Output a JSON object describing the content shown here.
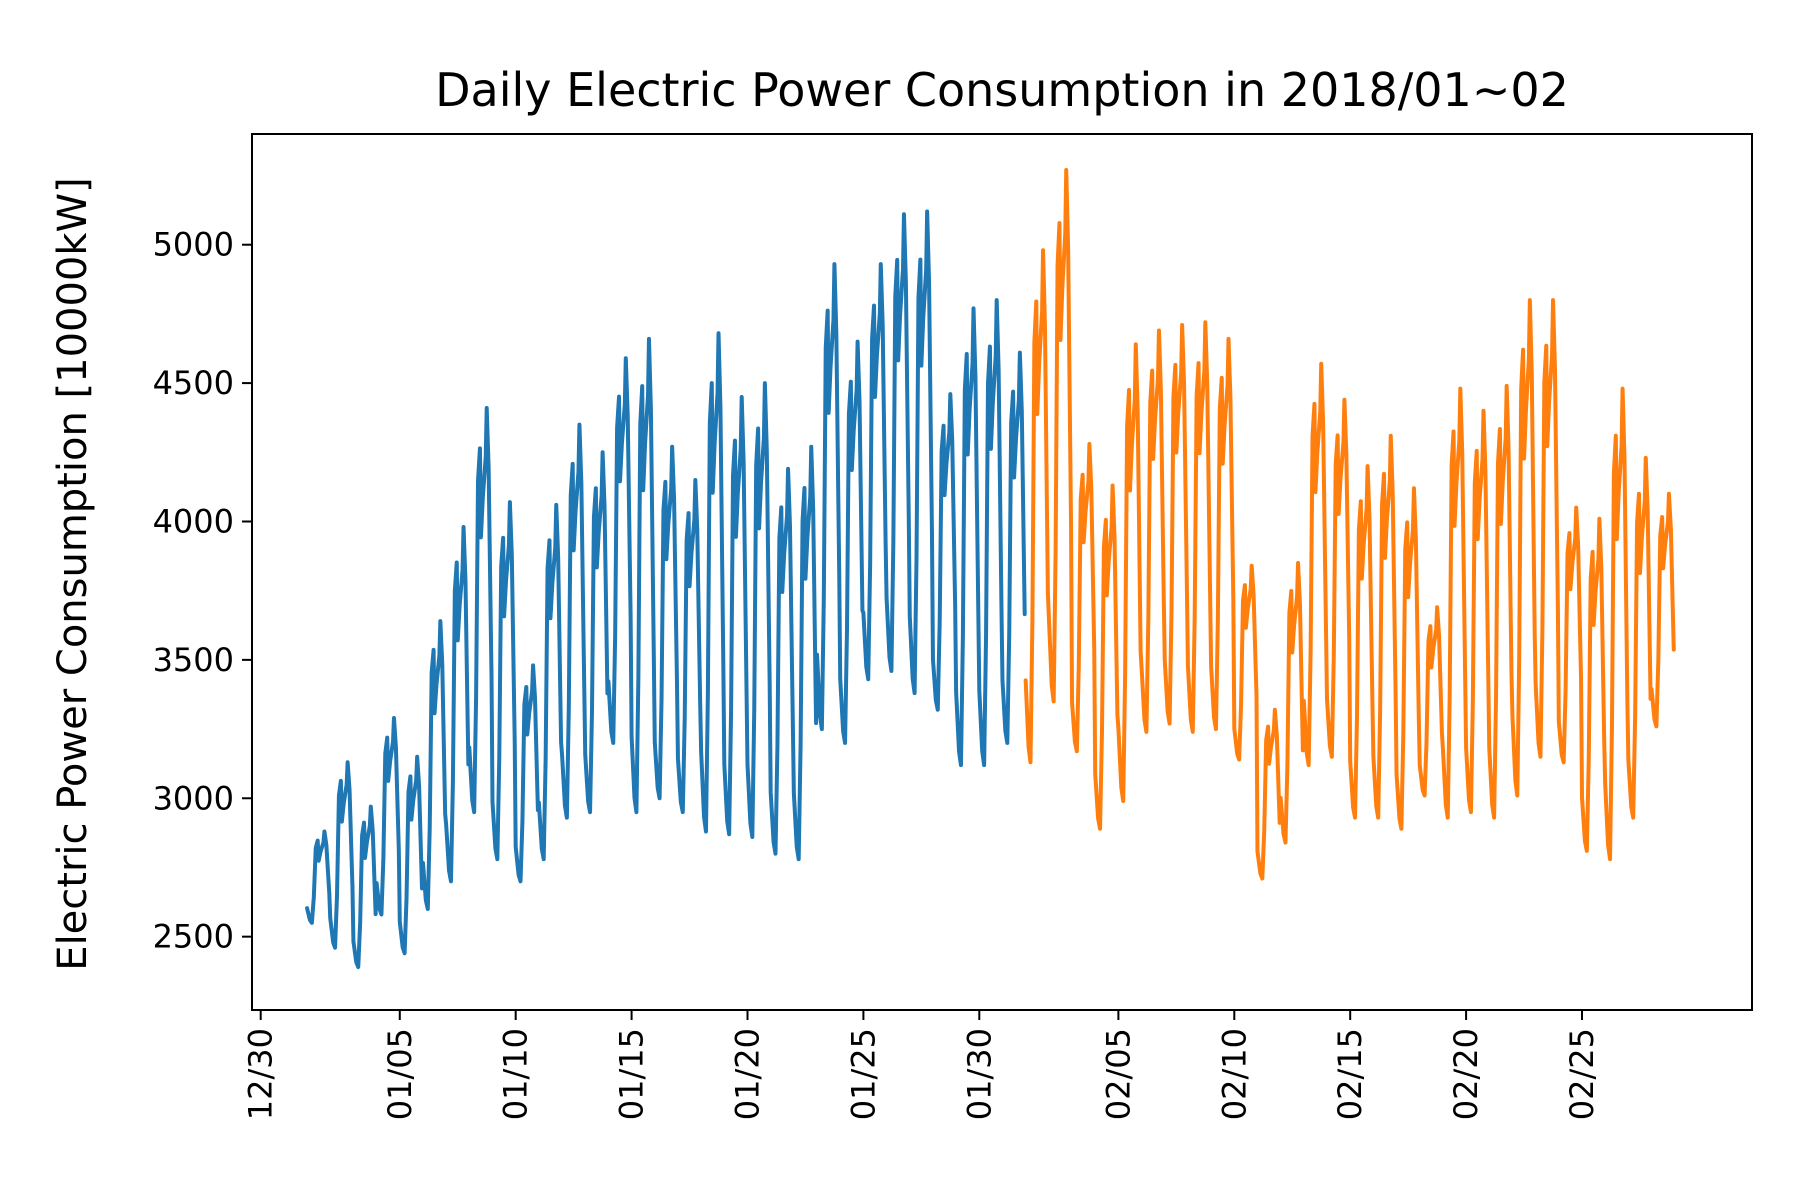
{
  "chart_data": {
    "type": "line",
    "title": "Daily Electric Power Consumption in 2018/01~02",
    "xlabel": "",
    "ylabel": "Electric Power Consumption [10000kW]",
    "x_unit": "hour",
    "ylim": [
      2235,
      5400
    ],
    "xlim": [
      "2017-12-29 15:00",
      "2018-03-04 08:00"
    ],
    "grid": false,
    "x_ticks": [
      "12/30",
      "01/05",
      "01/10",
      "01/15",
      "01/20",
      "01/25",
      "01/30",
      "02/05",
      "02/10",
      "02/15",
      "02/20",
      "02/25"
    ],
    "x_tick_dates": [
      "2017-12-30",
      "2018-01-05",
      "2018-01-10",
      "2018-01-15",
      "2018-01-20",
      "2018-01-25",
      "2018-01-30",
      "2018-02-05",
      "2018-02-10",
      "2018-02-15",
      "2018-02-20",
      "2018-02-25"
    ],
    "y_ticks": [
      2500,
      3000,
      3500,
      4000,
      4500,
      5000
    ],
    "y_tick_labels": [
      "2500",
      "3000",
      "3500",
      "4000",
      "4500",
      "5000"
    ],
    "series": [
      {
        "color": "#1f77b4",
        "start": "2018-01-01 00:00",
        "end": "2018-01-31 23:00",
        "daily_low": [
          2550,
          2460,
          2390,
          2580,
          2440,
          2600,
          2700,
          2950,
          2780,
          2700,
          2780,
          2930,
          2950,
          3200,
          2950,
          3000,
          2950,
          2880,
          2870,
          2860,
          2800,
          2780,
          3250,
          3200,
          3430,
          3460,
          3380,
          3320,
          3120,
          3120,
          3200
        ],
        "daily_high": [
          2880,
          3130,
          2970,
          3290,
          3150,
          3640,
          3980,
          4410,
          4070,
          3480,
          4060,
          4350,
          4250,
          4590,
          4660,
          4270,
          4150,
          4680,
          4450,
          4500,
          4190,
          4270,
          4930,
          4650,
          4930,
          5110,
          5120,
          4460,
          4770,
          4800,
          4610
        ]
      },
      {
        "color": "#ff7f0e",
        "start": "2018-02-01 00:00",
        "end": "2018-02-28 23:00",
        "daily_low": [
          3130,
          3350,
          3170,
          2890,
          2990,
          3240,
          3270,
          3240,
          3250,
          3140,
          2710,
          2840,
          3120,
          3150,
          2930,
          2930,
          2890,
          3010,
          2930,
          2950,
          2930,
          3010,
          3150,
          3130,
          2810,
          2780,
          2930,
          3260
        ],
        "daily_high": [
          4980,
          5270,
          4280,
          4130,
          4640,
          4690,
          4710,
          4720,
          4660,
          3840,
          3320,
          3850,
          4570,
          4440,
          4200,
          4310,
          4120,
          3690,
          4480,
          4400,
          4490,
          4800,
          4800,
          4050,
          4010,
          4480,
          4230,
          4100
        ]
      }
    ]
  }
}
